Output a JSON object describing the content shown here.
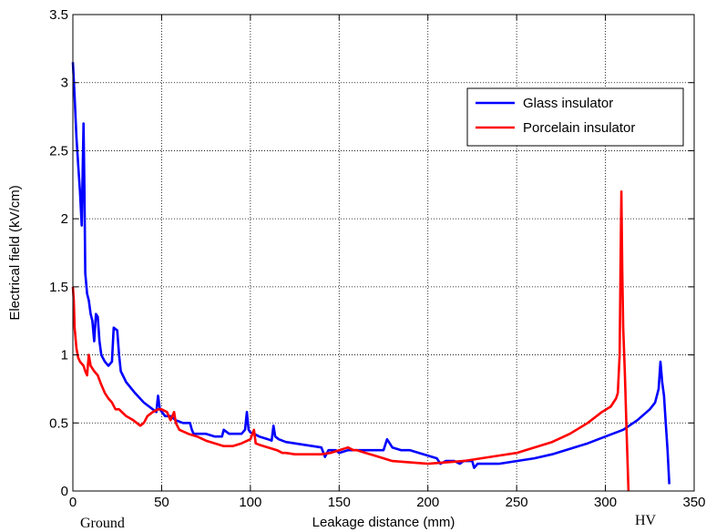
{
  "chart_data": {
    "type": "line",
    "title": "",
    "xlabel": "Leakage distance (mm)",
    "ylabel": "Electrical field (kV/cm)",
    "xlim": [
      0,
      350
    ],
    "ylim": [
      0,
      3.5
    ],
    "x_ticks": [
      "0",
      "50",
      "100",
      "150",
      "200",
      "250",
      "300",
      "350"
    ],
    "y_ticks": [
      "0",
      "0.5",
      "1",
      "1.5",
      "2",
      "2.5",
      "3",
      "3.5"
    ],
    "grid": true,
    "legend_position": "top-right",
    "annotations": {
      "left": "Ground",
      "right": "HV"
    },
    "series": [
      {
        "name": "Glass insulator",
        "color": "#0000ff",
        "points": [
          [
            0,
            3.15
          ],
          [
            1,
            2.9
          ],
          [
            2,
            2.6
          ],
          [
            3,
            2.4
          ],
          [
            4,
            2.2
          ],
          [
            5,
            1.95
          ],
          [
            6,
            2.7
          ],
          [
            6.5,
            2.2
          ],
          [
            7,
            1.6
          ],
          [
            8,
            1.45
          ],
          [
            9,
            1.4
          ],
          [
            10,
            1.3
          ],
          [
            11,
            1.25
          ],
          [
            12,
            1.1
          ],
          [
            13,
            1.3
          ],
          [
            14,
            1.28
          ],
          [
            15,
            1.1
          ],
          [
            16,
            1.0
          ],
          [
            18,
            0.95
          ],
          [
            20,
            0.92
          ],
          [
            22,
            0.95
          ],
          [
            23,
            1.2
          ],
          [
            25,
            1.18
          ],
          [
            26,
            1.0
          ],
          [
            27,
            0.88
          ],
          [
            30,
            0.8
          ],
          [
            35,
            0.72
          ],
          [
            40,
            0.65
          ],
          [
            45,
            0.6
          ],
          [
            47,
            0.58
          ],
          [
            48,
            0.7
          ],
          [
            49,
            0.6
          ],
          [
            52,
            0.55
          ],
          [
            55,
            0.55
          ],
          [
            58,
            0.52
          ],
          [
            62,
            0.5
          ],
          [
            66,
            0.5
          ],
          [
            67,
            0.45
          ],
          [
            68,
            0.42
          ],
          [
            70,
            0.42
          ],
          [
            75,
            0.42
          ],
          [
            80,
            0.4
          ],
          [
            84,
            0.4
          ],
          [
            85,
            0.45
          ],
          [
            88,
            0.42
          ],
          [
            92,
            0.42
          ],
          [
            95,
            0.42
          ],
          [
            97,
            0.45
          ],
          [
            98,
            0.58
          ],
          [
            99,
            0.45
          ],
          [
            100,
            0.43
          ],
          [
            102,
            0.42
          ],
          [
            105,
            0.4
          ],
          [
            110,
            0.38
          ],
          [
            112,
            0.37
          ],
          [
            113,
            0.48
          ],
          [
            114,
            0.4
          ],
          [
            116,
            0.38
          ],
          [
            120,
            0.36
          ],
          [
            125,
            0.35
          ],
          [
            130,
            0.34
          ],
          [
            135,
            0.33
          ],
          [
            140,
            0.32
          ],
          [
            142,
            0.25
          ],
          [
            144,
            0.3
          ],
          [
            148,
            0.3
          ],
          [
            150,
            0.28
          ],
          [
            155,
            0.3
          ],
          [
            160,
            0.3
          ],
          [
            165,
            0.3
          ],
          [
            170,
            0.3
          ],
          [
            175,
            0.3
          ],
          [
            177,
            0.38
          ],
          [
            180,
            0.32
          ],
          [
            185,
            0.3
          ],
          [
            190,
            0.3
          ],
          [
            195,
            0.28
          ],
          [
            200,
            0.26
          ],
          [
            205,
            0.24
          ],
          [
            207,
            0.2
          ],
          [
            210,
            0.22
          ],
          [
            215,
            0.22
          ],
          [
            218,
            0.2
          ],
          [
            220,
            0.22
          ],
          [
            225,
            0.22
          ],
          [
            226,
            0.17
          ],
          [
            228,
            0.2
          ],
          [
            232,
            0.2
          ],
          [
            240,
            0.2
          ],
          [
            250,
            0.22
          ],
          [
            260,
            0.24
          ],
          [
            270,
            0.27
          ],
          [
            280,
            0.31
          ],
          [
            290,
            0.35
          ],
          [
            300,
            0.4
          ],
          [
            310,
            0.45
          ],
          [
            318,
            0.52
          ],
          [
            325,
            0.6
          ],
          [
            328,
            0.65
          ],
          [
            330,
            0.75
          ],
          [
            331,
            0.95
          ],
          [
            332,
            0.8
          ],
          [
            333,
            0.7
          ],
          [
            334,
            0.5
          ],
          [
            335,
            0.3
          ],
          [
            336,
            0.05
          ]
        ]
      },
      {
        "name": "Porcelain insulator",
        "color": "#ff0000",
        "points": [
          [
            0,
            1.5
          ],
          [
            0.5,
            1.4
          ],
          [
            1,
            1.2
          ],
          [
            2,
            1.05
          ],
          [
            3,
            0.98
          ],
          [
            4,
            0.95
          ],
          [
            6,
            0.92
          ],
          [
            7,
            0.88
          ],
          [
            8,
            0.85
          ],
          [
            9,
            1.0
          ],
          [
            10,
            0.92
          ],
          [
            12,
            0.88
          ],
          [
            14,
            0.85
          ],
          [
            16,
            0.78
          ],
          [
            18,
            0.72
          ],
          [
            20,
            0.68
          ],
          [
            22,
            0.65
          ],
          [
            24,
            0.6
          ],
          [
            26,
            0.6
          ],
          [
            30,
            0.55
          ],
          [
            34,
            0.52
          ],
          [
            38,
            0.48
          ],
          [
            40,
            0.5
          ],
          [
            42,
            0.55
          ],
          [
            45,
            0.58
          ],
          [
            48,
            0.6
          ],
          [
            50,
            0.6
          ],
          [
            53,
            0.58
          ],
          [
            55,
            0.52
          ],
          [
            57,
            0.58
          ],
          [
            58,
            0.5
          ],
          [
            60,
            0.45
          ],
          [
            65,
            0.42
          ],
          [
            70,
            0.4
          ],
          [
            75,
            0.37
          ],
          [
            80,
            0.35
          ],
          [
            85,
            0.33
          ],
          [
            90,
            0.33
          ],
          [
            95,
            0.35
          ],
          [
            100,
            0.38
          ],
          [
            102,
            0.45
          ],
          [
            103,
            0.35
          ],
          [
            105,
            0.34
          ],
          [
            110,
            0.32
          ],
          [
            115,
            0.3
          ],
          [
            118,
            0.28
          ],
          [
            120,
            0.28
          ],
          [
            125,
            0.27
          ],
          [
            130,
            0.27
          ],
          [
            140,
            0.27
          ],
          [
            145,
            0.28
          ],
          [
            150,
            0.3
          ],
          [
            155,
            0.32
          ],
          [
            158,
            0.3
          ],
          [
            160,
            0.3
          ],
          [
            165,
            0.28
          ],
          [
            170,
            0.26
          ],
          [
            175,
            0.24
          ],
          [
            180,
            0.22
          ],
          [
            190,
            0.21
          ],
          [
            200,
            0.2
          ],
          [
            210,
            0.21
          ],
          [
            220,
            0.22
          ],
          [
            230,
            0.24
          ],
          [
            240,
            0.26
          ],
          [
            250,
            0.28
          ],
          [
            260,
            0.32
          ],
          [
            270,
            0.36
          ],
          [
            280,
            0.42
          ],
          [
            290,
            0.5
          ],
          [
            298,
            0.58
          ],
          [
            303,
            0.62
          ],
          [
            306,
            0.68
          ],
          [
            307,
            0.72
          ],
          [
            308,
            1.0
          ],
          [
            308.5,
            1.6
          ],
          [
            309,
            2.2
          ],
          [
            309.5,
            1.6
          ],
          [
            310,
            1.2
          ],
          [
            311,
            0.85
          ],
          [
            312,
            0.4
          ],
          [
            313,
            0.0
          ]
        ]
      }
    ]
  }
}
